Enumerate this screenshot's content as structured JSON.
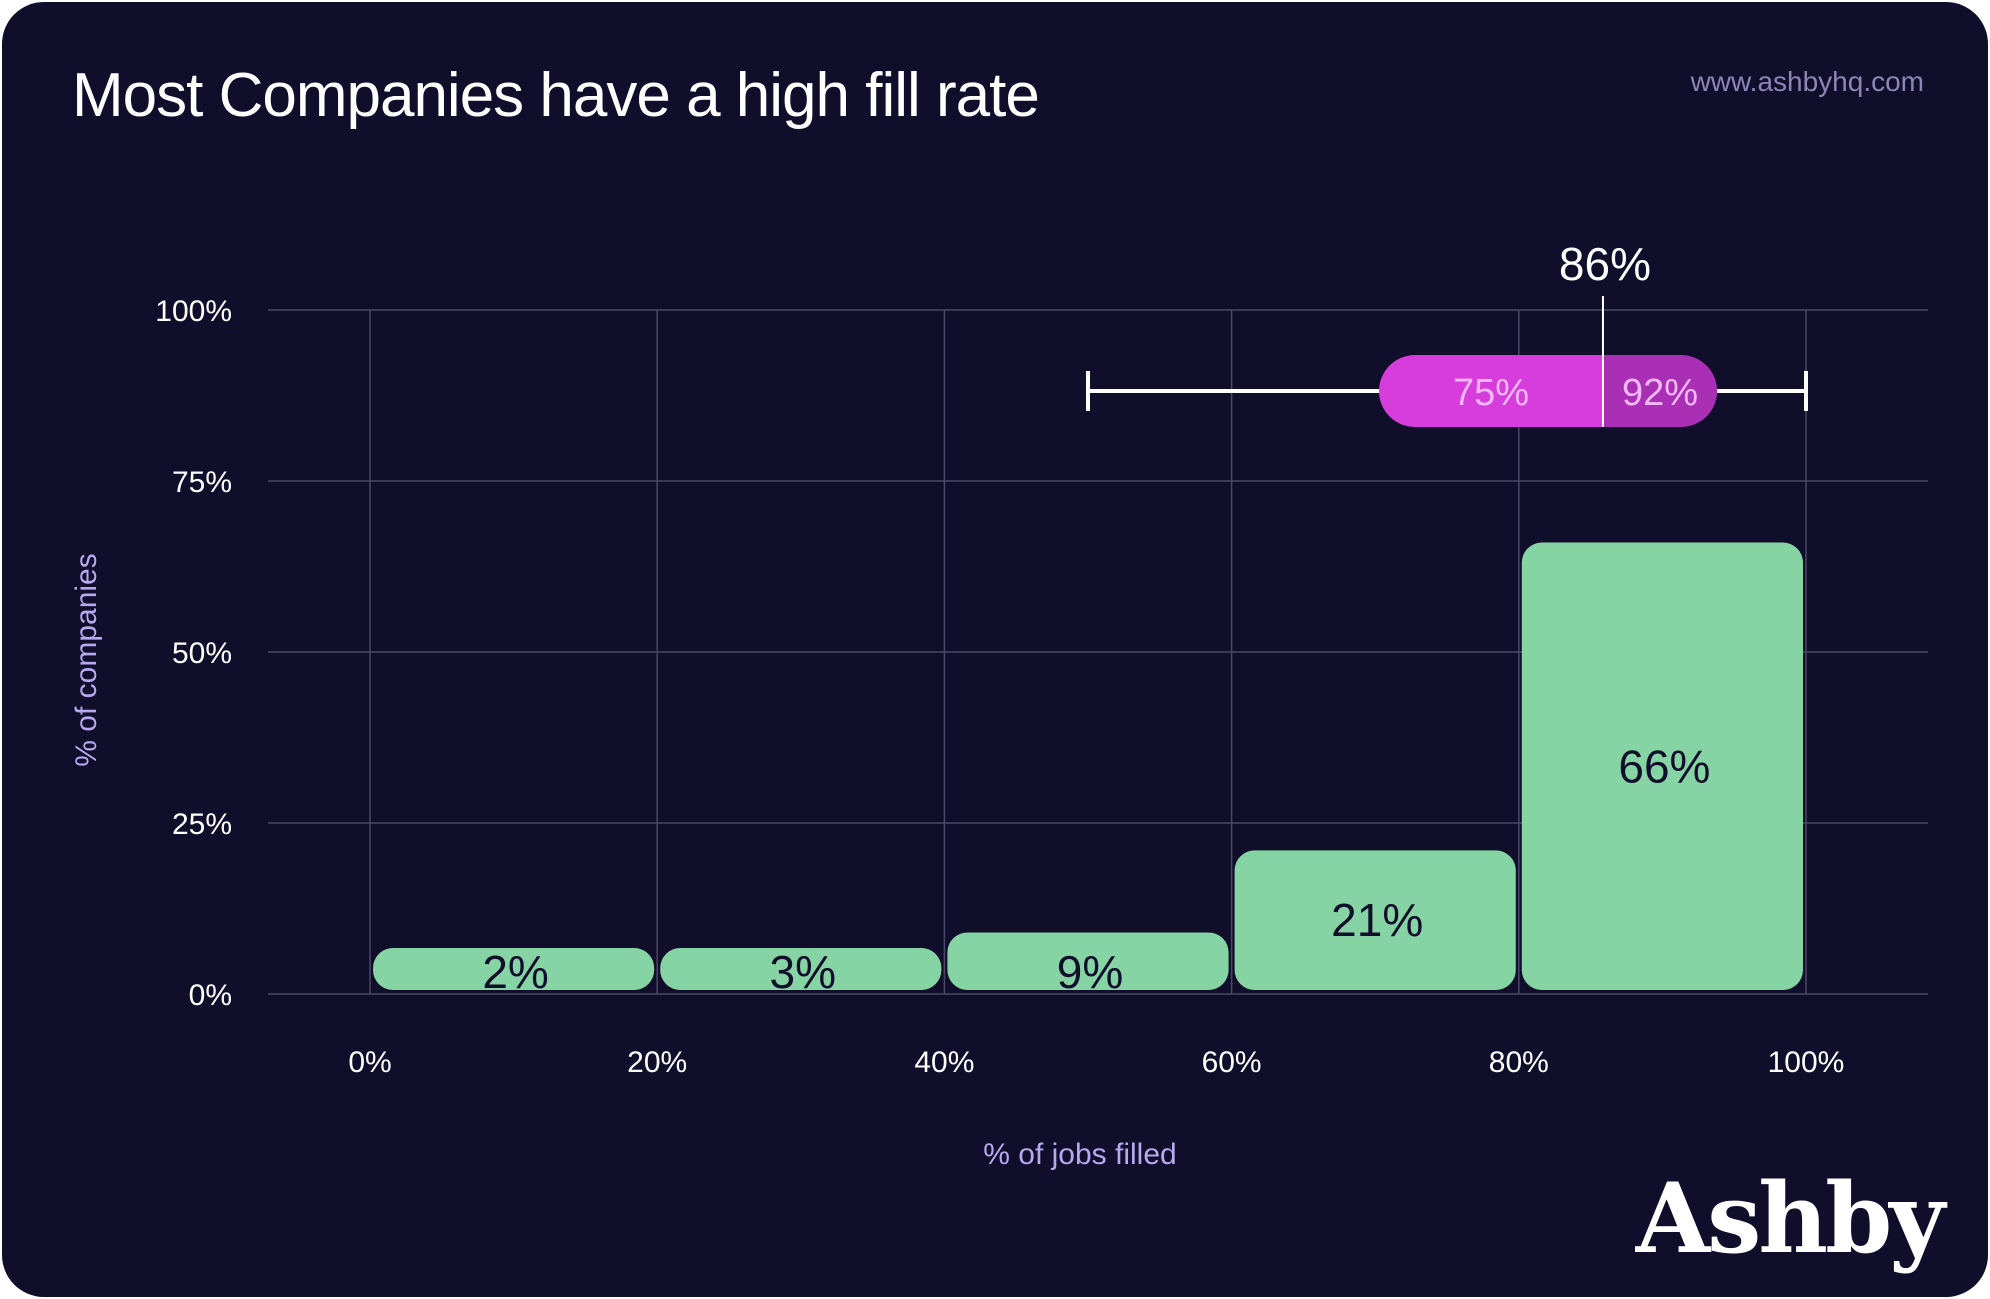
{
  "header": {
    "title": "Most Companies have a high fill rate",
    "site": "www.ashbyhq.com",
    "logo": "Ashby"
  },
  "colors": {
    "background": "#100e2a",
    "bar": "#86d3a4",
    "pill_left": "#d63ddc",
    "pill_right": "#a92fb4",
    "grid": "#4a4866"
  },
  "chart_data": {
    "type": "bar",
    "xlabel": "% of jobs filled",
    "ylabel": "% of companies",
    "x_ticks": [
      "0%",
      "20%",
      "40%",
      "60%",
      "80%",
      "100%"
    ],
    "y_ticks": [
      "0%",
      "25%",
      "50%",
      "75%",
      "100%"
    ],
    "ylim": [
      0,
      100
    ],
    "categories": [
      "0-20%",
      "20-40%",
      "40-60%",
      "60-80%",
      "80-100%"
    ],
    "bin_edges": [
      0,
      20,
      40,
      60,
      80,
      100
    ],
    "values": [
      2,
      3,
      9,
      21,
      66
    ],
    "value_labels": [
      "2%",
      "3%",
      "9%",
      "21%",
      "66%"
    ],
    "grid": true,
    "range_annotation": {
      "min": 50,
      "max": 100,
      "q1": 75,
      "q3": 92,
      "median": 86,
      "q1_label": "75%",
      "q3_label": "92%",
      "median_label": "86%"
    }
  }
}
